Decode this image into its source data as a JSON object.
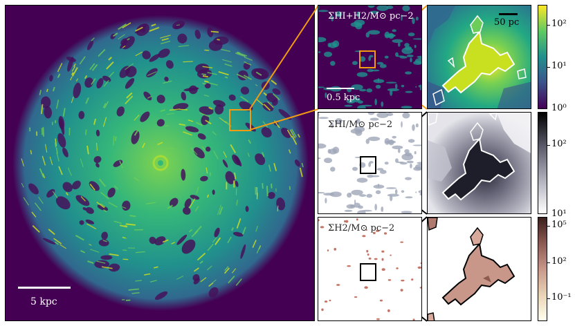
{
  "colors": {
    "background_dark": "#440154",
    "gas_green": "#2a9d8f",
    "gas_yellow": "#e6e51a",
    "zoom_box_orange": "#f39c12",
    "zoom_box_black": "#000000",
    "contour_white": "#ffffff",
    "hi_dark": "#1f1f2e",
    "h2_pink": "#c9978a"
  },
  "main_panel": {
    "scale_label": "5 kpc"
  },
  "row1": {
    "title": "Σ_HI+H2 / M⊙ pc⁻²",
    "title_display": "ΣHI+H2/M⊙ pc−2",
    "scale_label": "0.5 kpc",
    "zoom_scale_label": "50 pc",
    "colorbar_ticks": [
      "10²",
      "10¹",
      "10⁰"
    ]
  },
  "row2": {
    "title_display": "ΣHI/M⊙ pc−2",
    "colorbar_ticks": [
      "10²",
      "10¹"
    ]
  },
  "row3": {
    "title_display": "ΣH2/M⊙ pc−2",
    "colorbar_ticks": [
      "10⁵",
      "10²",
      "10⁻¹"
    ]
  }
}
